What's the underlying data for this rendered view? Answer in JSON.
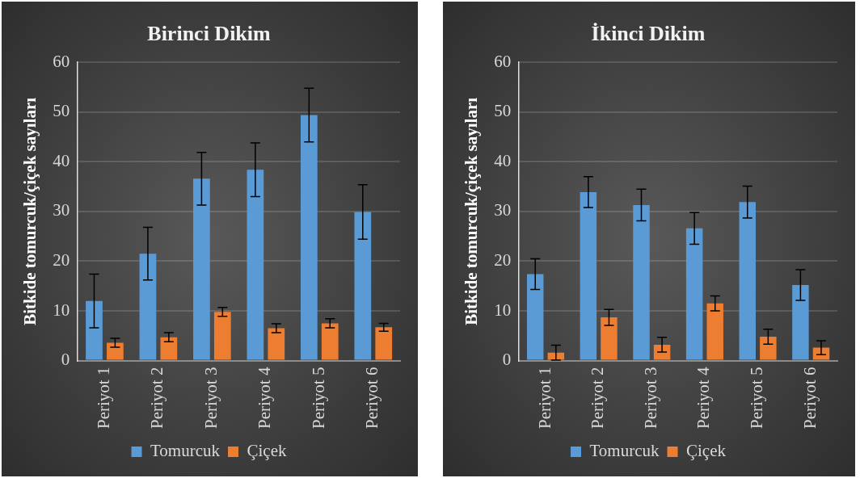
{
  "chart_data": [
    {
      "type": "bar",
      "title": "Birinci Dikim",
      "ylabel": "Bitkide tomurcuk/çiçek sayıları",
      "categories": [
        "Periyot 1",
        "Periyot 2",
        "Periyot 3",
        "Periyot 4",
        "Periyot 5",
        "Periyot 6"
      ],
      "series": [
        {
          "name": "Tomurcuk",
          "color": "#5b9bd5",
          "values": [
            12.0,
            21.5,
            36.6,
            38.4,
            49.4,
            29.9
          ],
          "errors": [
            5.4,
            5.3,
            5.3,
            5.4,
            5.4,
            5.5
          ]
        },
        {
          "name": "Çiçek",
          "color": "#ed7d31",
          "values": [
            3.6,
            4.7,
            9.8,
            6.5,
            7.5,
            6.7
          ],
          "errors": [
            0.9,
            0.9,
            0.9,
            0.9,
            0.9,
            0.8
          ]
        }
      ],
      "ylim": [
        0,
        60
      ],
      "yticks": [
        0,
        10,
        20,
        30,
        40,
        50,
        60
      ],
      "grid": "y",
      "legend": "bottom"
    },
    {
      "type": "bar",
      "title": "İkinci Dikim",
      "ylabel": "Bitkide tomurcuk/çiçek sayıları",
      "categories": [
        "Periyot 1",
        "Periyot 2",
        "Periyot 3",
        "Periyot 4",
        "Periyot 5",
        "Periyot 6"
      ],
      "series": [
        {
          "name": "Tomurcuk",
          "color": "#5b9bd5",
          "values": [
            17.4,
            33.9,
            31.3,
            26.6,
            31.9,
            15.2
          ],
          "errors": [
            3.1,
            3.1,
            3.2,
            3.2,
            3.2,
            3.1
          ]
        },
        {
          "name": "Çiçek",
          "color": "#ed7d31",
          "values": [
            1.6,
            8.7,
            3.2,
            11.5,
            4.8,
            2.6
          ],
          "errors": [
            1.5,
            1.6,
            1.5,
            1.5,
            1.5,
            1.4
          ]
        }
      ],
      "ylim": [
        0,
        60
      ],
      "yticks": [
        0,
        10,
        20,
        30,
        40,
        50,
        60
      ],
      "grid": "y",
      "legend": "bottom"
    }
  ]
}
